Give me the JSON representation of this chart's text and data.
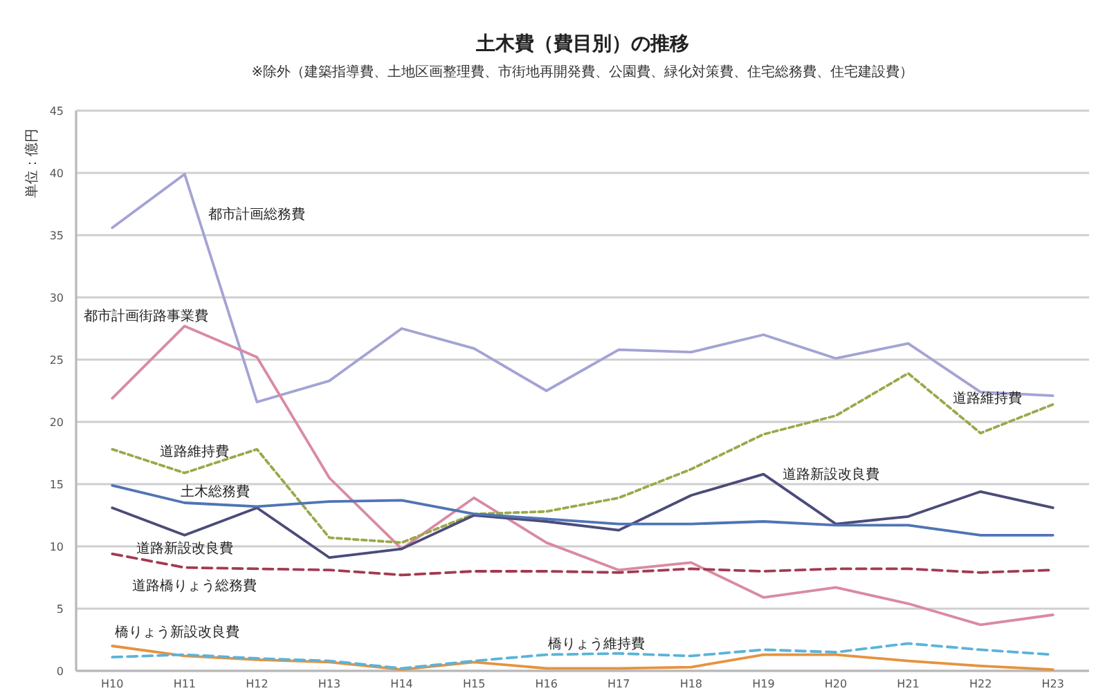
{
  "chart_data": {
    "type": "line",
    "title": "土木費（費目別）の推移",
    "subtitle": "※除外（建築指導費、土地区画整理費、市街地再開発費、公園費、緑化対策費、住宅総務費、住宅建設費）",
    "ylabel": "単位：億円",
    "categories": [
      "H10",
      "H11",
      "H12",
      "H13",
      "H14",
      "H15",
      "H16",
      "H17",
      "H18",
      "H19",
      "H20",
      "H21",
      "H22",
      "H23"
    ],
    "ylim": [
      0,
      45
    ],
    "yticks": [
      0,
      5,
      10,
      15,
      20,
      25,
      30,
      35,
      40,
      45
    ],
    "grid": "y",
    "series": [
      {
        "name": "都市計画総務費",
        "color": "#a3a3d4",
        "values": [
          35.6,
          39.9,
          21.6,
          23.3,
          27.5,
          25.9,
          22.5,
          25.8,
          25.6,
          27.0,
          25.1,
          26.3,
          22.4,
          22.1
        ]
      },
      {
        "name": "都市計画街路事業費",
        "color": "#d98aa2",
        "values": [
          21.9,
          27.7,
          25.2,
          15.5,
          9.8,
          13.9,
          10.3,
          8.1,
          8.7,
          5.9,
          6.7,
          5.4,
          3.7,
          4.5
        ]
      },
      {
        "name": "道路維持費",
        "color": "#9aa84a",
        "line_style": "dotted",
        "values": [
          17.8,
          15.9,
          17.8,
          10.7,
          10.3,
          12.6,
          12.8,
          13.9,
          16.2,
          19.0,
          20.5,
          23.9,
          19.1,
          21.4
        ]
      },
      {
        "name": "道路新設改良費",
        "color": "#4b4b7a",
        "values": [
          13.1,
          10.9,
          13.1,
          9.1,
          9.8,
          12.5,
          12.0,
          11.3,
          14.1,
          15.8,
          11.8,
          12.4,
          14.4,
          13.1
        ]
      },
      {
        "name": "土木総務費",
        "color": "#4f74b5",
        "values": [
          14.9,
          13.5,
          13.2,
          13.6,
          13.7,
          12.6,
          12.2,
          11.8,
          11.8,
          12.0,
          11.7,
          11.7,
          10.9,
          10.9
        ]
      },
      {
        "name": "道路橋りょう総務費",
        "color": "#a23a52",
        "line_style": "dashed",
        "values": [
          9.4,
          8.3,
          8.2,
          8.1,
          7.7,
          8.0,
          8.0,
          7.9,
          8.2,
          8.0,
          8.2,
          8.2,
          7.9,
          8.1
        ]
      },
      {
        "name": "橋りょう新設改良費",
        "color": "#e6923f",
        "values": [
          2.0,
          1.2,
          0.9,
          0.7,
          0.1,
          0.7,
          0.2,
          0.2,
          0.3,
          1.3,
          1.3,
          0.8,
          0.4,
          0.1
        ]
      },
      {
        "name": "橋りょう維持費",
        "color": "#5ab3d9",
        "line_style": "dashed",
        "values": [
          1.1,
          1.3,
          1.0,
          0.8,
          0.2,
          0.8,
          1.3,
          1.4,
          1.2,
          1.7,
          1.5,
          2.2,
          1.7,
          1.3
        ]
      }
    ],
    "annotations": [
      "道路維持費",
      "道路新設改良費"
    ]
  }
}
